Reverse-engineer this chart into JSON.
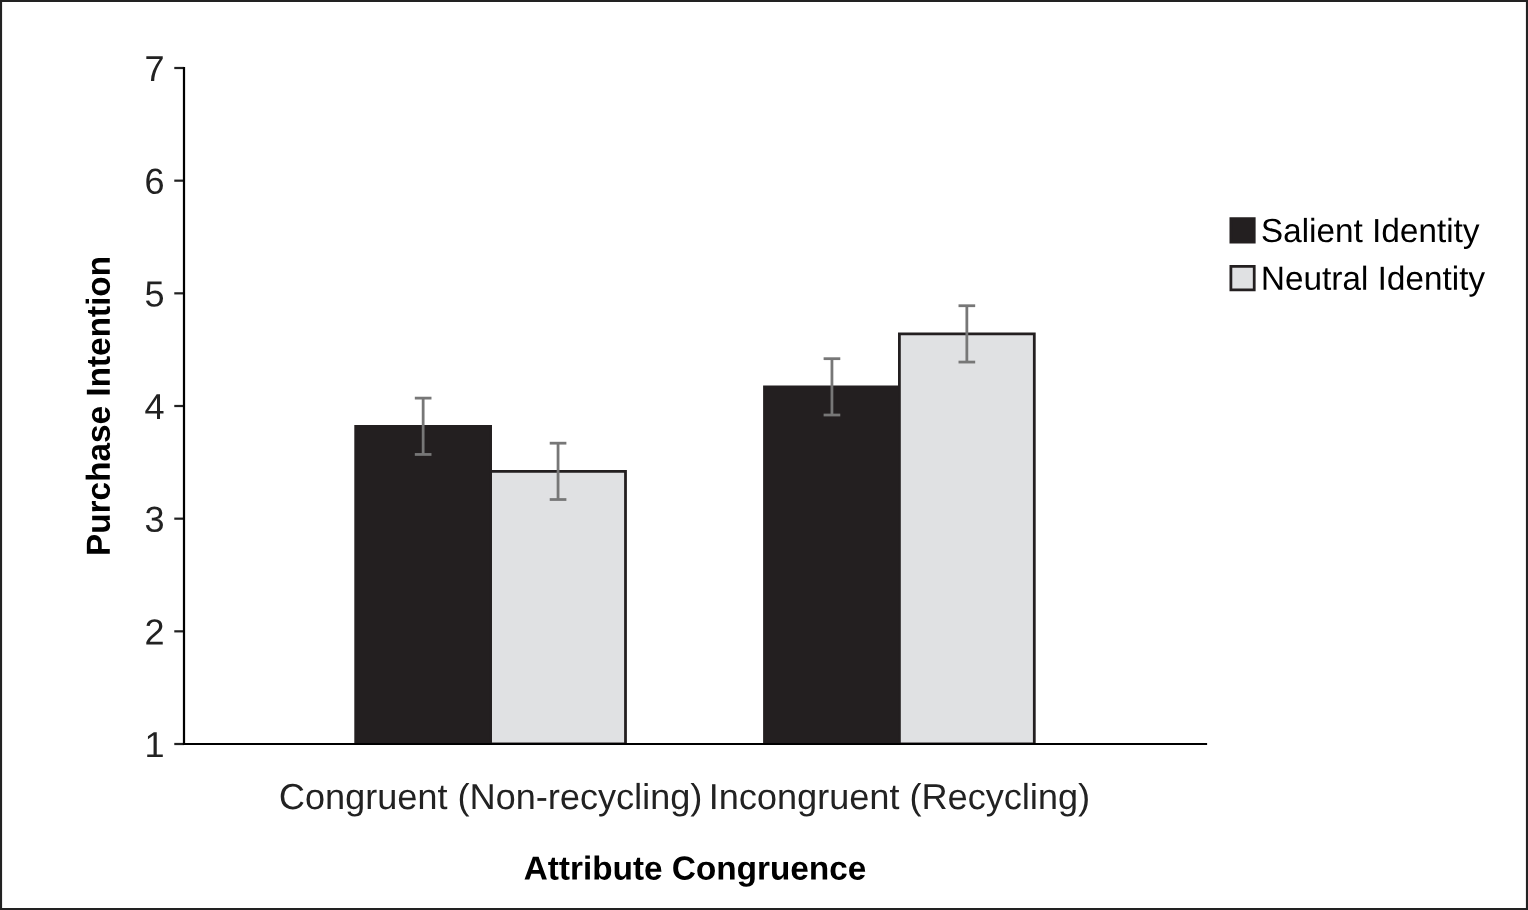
{
  "chart_data": {
    "type": "bar",
    "xlabel": "Attribute Congruence",
    "ylabel": "Purchase Intention",
    "categories": [
      "Congruent (Non-recycling)",
      "Incongruent (Recycling)"
    ],
    "series": [
      {
        "name": "Salient Identity",
        "color": "#231f20",
        "values": [
          3.82,
          4.17
        ],
        "errors": [
          0.25,
          0.25
        ]
      },
      {
        "name": "Neutral Identity",
        "color": "#e0e1e3",
        "values": [
          3.42,
          4.64
        ],
        "errors": [
          0.25,
          0.25
        ]
      }
    ],
    "ylim": [
      1,
      7
    ],
    "yticks": [
      1,
      2,
      3,
      4,
      5,
      6,
      7
    ],
    "grid": false,
    "legend": "right"
  }
}
